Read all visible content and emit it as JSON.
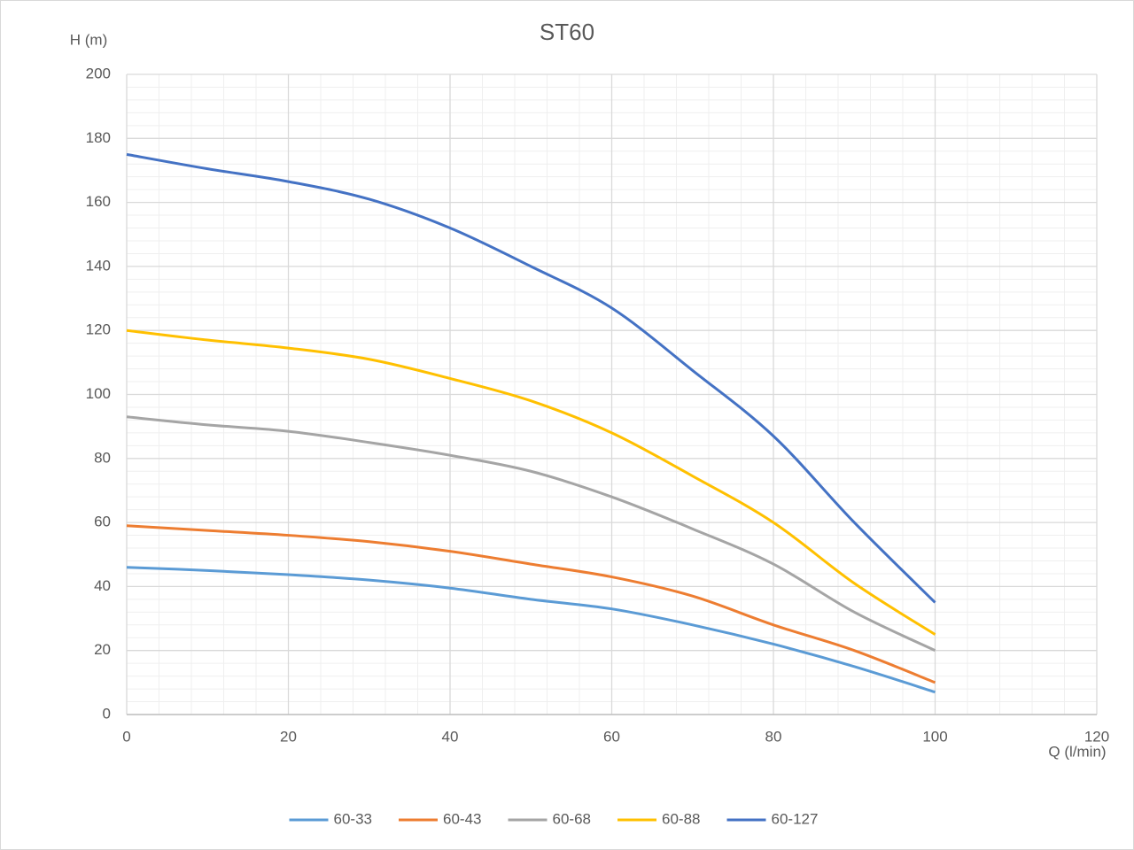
{
  "chart_data": {
    "type": "line",
    "title": "ST60",
    "y_label": "H (m)",
    "x_label": "Q (l/min)",
    "x": [
      0,
      10,
      20,
      30,
      40,
      50,
      60,
      70,
      80,
      90,
      100
    ],
    "series": [
      {
        "name": "60-33",
        "color": "#5b9bd5",
        "values": [
          46,
          45,
          43.7,
          42,
          39.5,
          36,
          33,
          28,
          22,
          15,
          7
        ]
      },
      {
        "name": "60-43",
        "color": "#ed7d31",
        "values": [
          59,
          57.5,
          56,
          54,
          51,
          47,
          43,
          37,
          28,
          20,
          10
        ]
      },
      {
        "name": "60-68",
        "color": "#a5a5a5",
        "values": [
          93,
          90.5,
          88.5,
          85,
          81,
          76,
          68,
          58,
          47,
          32,
          20
        ]
      },
      {
        "name": "60-88",
        "color": "#ffc000",
        "values": [
          120,
          117,
          114.5,
          111,
          105,
          98,
          88,
          74.5,
          60,
          41,
          25
        ]
      },
      {
        "name": "60-127",
        "color": "#4472c4",
        "values": [
          175,
          170.5,
          166.5,
          161,
          152,
          140,
          127,
          107.5,
          87,
          60,
          35
        ]
      }
    ],
    "xlim": [
      0,
      120
    ],
    "xticks": [
      0,
      20,
      40,
      60,
      80,
      100,
      120
    ],
    "ylim": [
      0,
      200
    ],
    "yticks": [
      0,
      20,
      40,
      60,
      80,
      100,
      120,
      140,
      160,
      180,
      200
    ],
    "grid": true,
    "minor_grid": true,
    "legend": "bottom"
  }
}
